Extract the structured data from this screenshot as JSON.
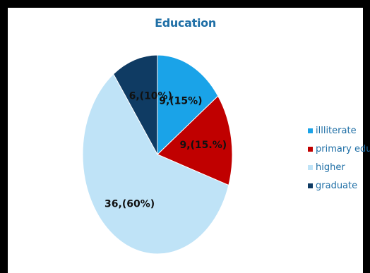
{
  "chart_data": {
    "type": "pie",
    "title": "Education",
    "legend_position": "right",
    "start_angle_deg": 0,
    "direction": "clockwise",
    "slices": [
      {
        "name": "illliterate",
        "value": 9,
        "label": "9,(15%)",
        "color": "#1aa3e8"
      },
      {
        "name": "primary edu",
        "value": 9,
        "label": "9,(15.%)",
        "color": "#c00000"
      },
      {
        "name": "higher",
        "value": 36,
        "label": "36,(60%)",
        "color": "#bfe3f7"
      },
      {
        "name": "graduate",
        "value": 6,
        "label": "6,(10%)",
        "color": "#0f3b63"
      }
    ]
  }
}
